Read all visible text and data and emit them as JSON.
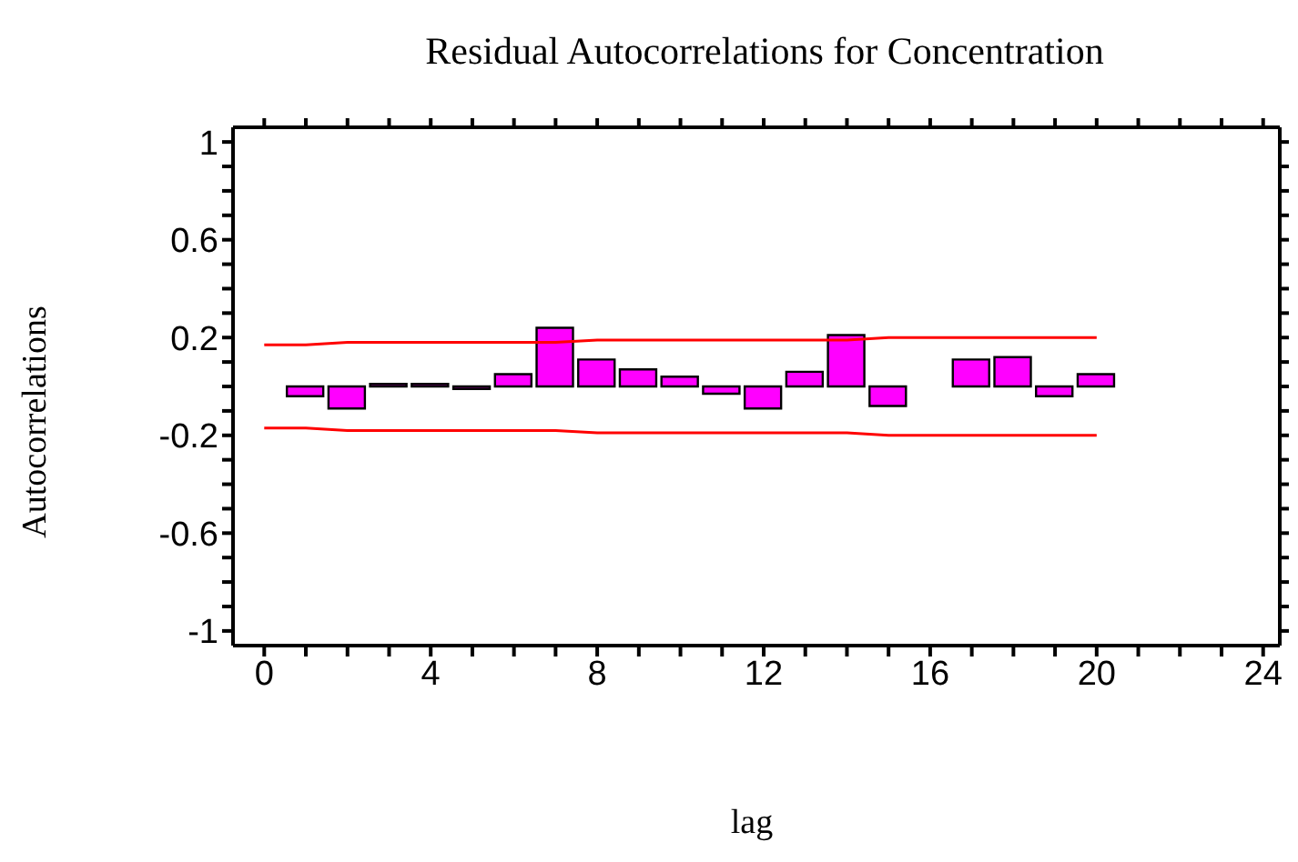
{
  "chart_data": {
    "type": "bar",
    "title": "Residual Autocorrelations for Concentration",
    "xlabel": "lag",
    "ylabel": "Autocorrelations",
    "x": [
      1,
      2,
      3,
      4,
      5,
      6,
      7,
      8,
      9,
      10,
      11,
      12,
      13,
      14,
      15,
      16,
      17,
      18,
      19,
      20
    ],
    "series": [
      {
        "color": "#ff00ff",
        "values": [
          -0.04,
          -0.09,
          0.01,
          0.01,
          -0.01,
          0.05,
          0.24,
          0.11,
          0.07,
          0.04,
          -0.03,
          -0.09,
          0.06,
          0.21,
          -0.08,
          0.0,
          0.11,
          0.12,
          -0.04,
          0.05
        ]
      },
      {
        "type": "line",
        "color": "#ff0000",
        "marker": "none",
        "x": [
          0,
          1,
          2,
          7,
          8,
          14,
          15,
          20
        ],
        "values": [
          0.17,
          0.17,
          0.18,
          0.18,
          0.19,
          0.19,
          0.2,
          0.2
        ]
      },
      {
        "type": "line",
        "color": "#ff0000",
        "marker": "none",
        "x": [
          0,
          1,
          2,
          7,
          8,
          14,
          15,
          20
        ],
        "values": [
          -0.17,
          -0.17,
          -0.18,
          -0.18,
          -0.19,
          -0.19,
          -0.2,
          -0.2
        ]
      }
    ],
    "xlim": [
      -0.75,
      24.4
    ],
    "xticks": [
      0,
      {
        "value": 1,
        "label": null
      },
      {
        "value": 2,
        "label": null
      },
      {
        "value": 3,
        "label": null
      },
      4,
      {
        "value": 5,
        "label": null
      },
      {
        "value": 6,
        "label": null
      },
      {
        "value": 7,
        "label": null
      },
      8,
      {
        "value": 9,
        "label": null
      },
      {
        "value": 10,
        "label": null
      },
      {
        "value": 11,
        "label": null
      },
      12,
      {
        "value": 13,
        "label": null
      },
      {
        "value": 14,
        "label": null
      },
      {
        "value": 15,
        "label": null
      },
      16,
      {
        "value": 17,
        "label": null
      },
      {
        "value": 18,
        "label": null
      },
      {
        "value": 19,
        "label": null
      },
      20,
      {
        "value": 21,
        "label": null
      },
      {
        "value": 22,
        "label": null
      },
      {
        "value": 23,
        "label": null
      },
      24
    ],
    "ylim": [
      -1.06,
      1.06
    ],
    "yticks": [
      -1,
      {
        "value": -0.9,
        "label": null
      },
      {
        "value": -0.8,
        "label": null
      },
      {
        "value": -0.7,
        "label": null
      },
      -0.6,
      {
        "value": -0.5,
        "label": null
      },
      {
        "value": -0.4,
        "label": null
      },
      {
        "value": -0.3,
        "label": null
      },
      -0.2,
      {
        "value": -0.1,
        "label": null
      },
      {
        "value": 0,
        "label": null
      },
      {
        "value": 0.1,
        "label": null
      },
      0.2,
      {
        "value": 0.3,
        "label": null
      },
      {
        "value": 0.4,
        "label": null
      },
      {
        "value": 0.5,
        "label": null
      },
      0.6,
      {
        "value": 0.7,
        "label": null
      },
      {
        "value": 0.8,
        "label": null
      },
      {
        "value": 0.9,
        "label": null
      },
      1
    ],
    "grid": false,
    "legend": false
  }
}
